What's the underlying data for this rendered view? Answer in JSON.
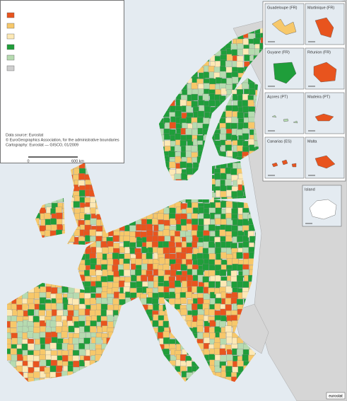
{
  "legend": {
    "colors": [
      "#e8541e",
      "#f7c86a",
      "#fde9b5",
      "#1f9e3a",
      "#b6dbb0",
      "#cfcfcf"
    ]
  },
  "credits": [
    "Data source: Eurostat",
    "© EuroGeographics Association, for the administrative boundaries",
    "Cartography: Eurostat — GISCO, 01/2009"
  ],
  "scale_bar": {
    "labels": [
      "0",
      "600 km"
    ]
  },
  "insets": [
    {
      "label": "Guadeloupe (FR)",
      "color": "#f7c86a"
    },
    {
      "label": "Martinique (FR)",
      "color": "#e8541e"
    },
    {
      "label": "Guyane (FR)",
      "color": "#1f9e3a"
    },
    {
      "label": "Réunion (FR)",
      "color": "#e8541e"
    },
    {
      "label": "Açores (PT)",
      "color": "#b6dbb0"
    },
    {
      "label": "Madeira (PT)",
      "color": "#e8541e"
    },
    {
      "label": "Canarias (ES)",
      "color": "#e8541e"
    },
    {
      "label": "Malta",
      "color": "#e8541e"
    },
    {
      "label": "Island",
      "color": "#ffffff"
    }
  ],
  "logo": "eurostat"
}
